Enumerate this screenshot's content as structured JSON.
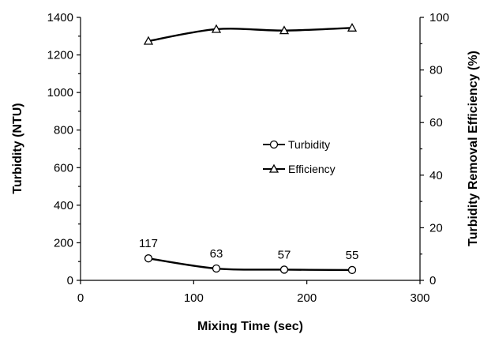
{
  "chart_data": {
    "type": "line",
    "x": [
      60,
      120,
      180,
      240
    ],
    "xlabel": "Mixing Time (sec)",
    "xlim": [
      0,
      300
    ],
    "xticks": [
      0,
      100,
      200,
      300
    ],
    "ylabel_left": "Turbidity (NTU)",
    "ylim_left": [
      0,
      1400
    ],
    "yticks_left": [
      0,
      200,
      400,
      600,
      800,
      1000,
      1200,
      1400
    ],
    "ylabel_right": "Turbidity Removal Efficiency (%)",
    "ylim_right": [
      0,
      100
    ],
    "yticks_right": [
      0,
      20,
      40,
      60,
      80,
      100
    ],
    "grid": false,
    "legend_position": "center-right",
    "series": [
      {
        "name": "Turbidity",
        "axis": "left",
        "marker": "circle",
        "values": [
          117,
          63,
          57,
          55
        ],
        "data_labels": [
          "117",
          "63",
          "57",
          "55"
        ]
      },
      {
        "name": "Efficiency",
        "axis": "right",
        "marker": "triangle",
        "values": [
          91,
          95.5,
          95,
          96
        ]
      }
    ]
  }
}
